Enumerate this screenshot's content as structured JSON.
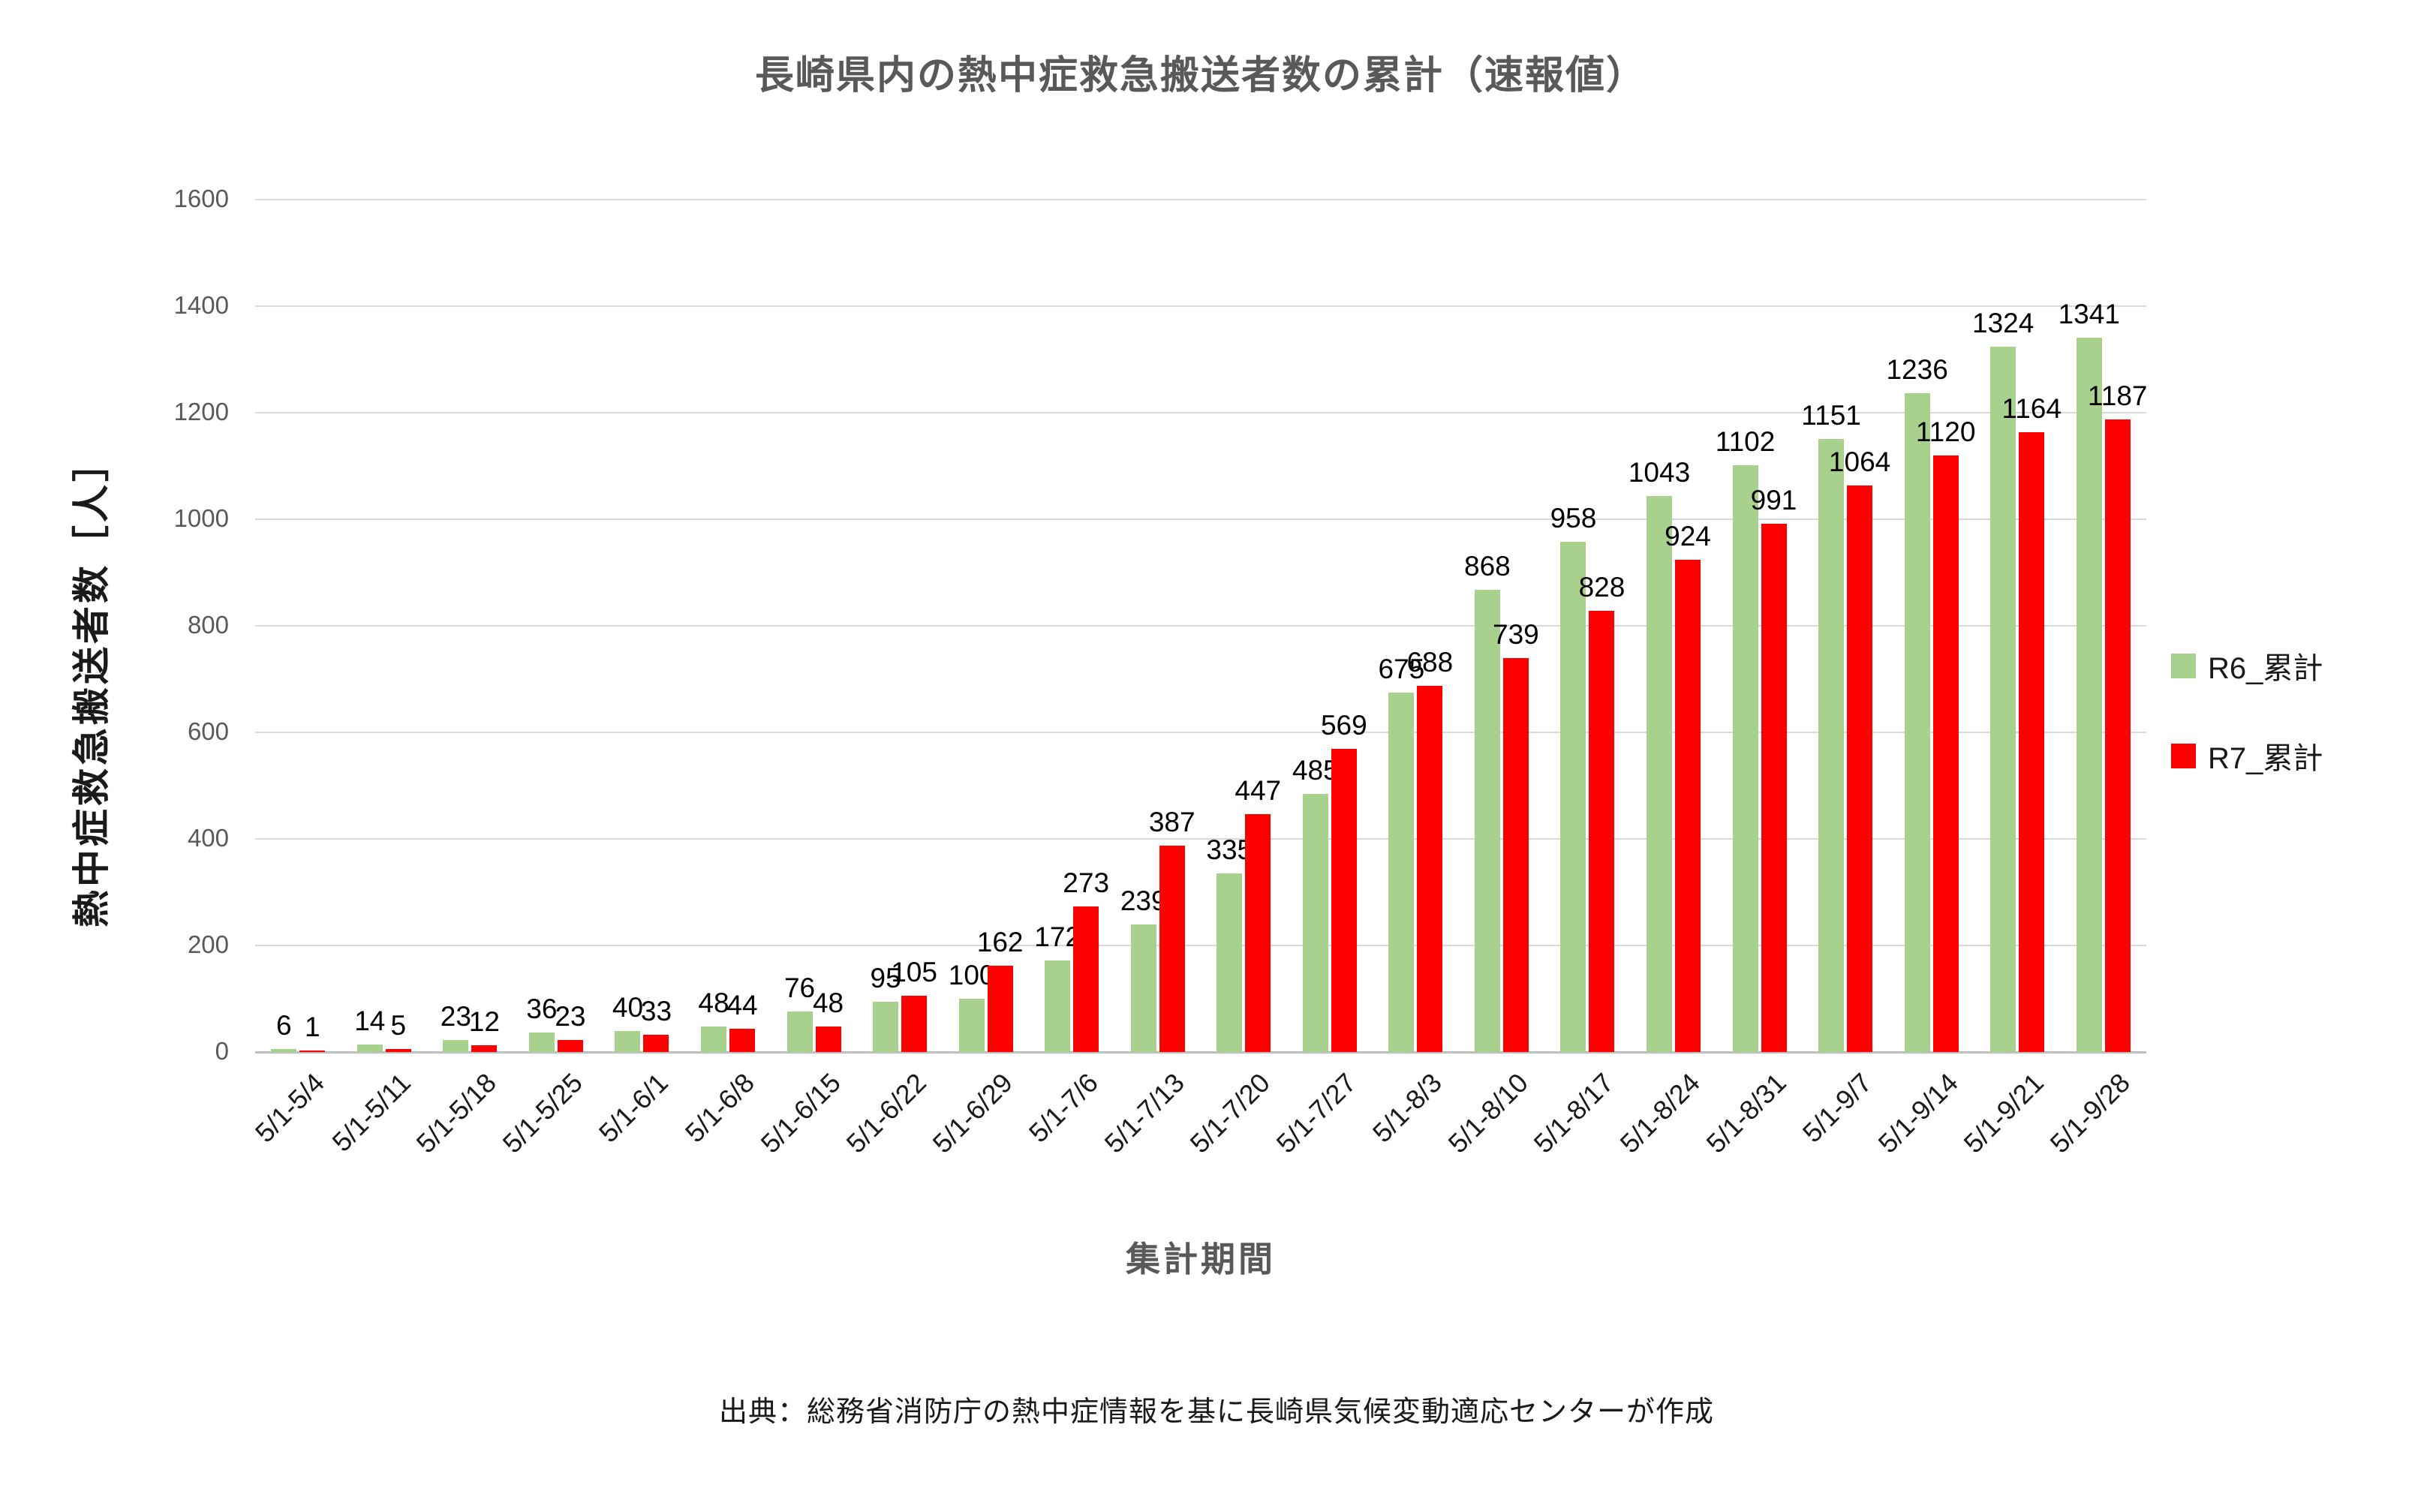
{
  "chart_data": {
    "type": "bar",
    "title": "長崎県内の熱中症救急搬送者数の累計（速報値）",
    "xlabel": "集計期間",
    "ylabel": "熱中症救急搬送者数［人］",
    "ylim": [
      0,
      1600
    ],
    "ytick_step": 200,
    "grid": true,
    "legend_position": "right",
    "bar_value_labels": true,
    "categories": [
      "5/1-5/4",
      "5/1-5/11",
      "5/1-5/18",
      "5/1-5/25",
      "5/1-6/1",
      "5/1-6/8",
      "5/1-6/15",
      "5/1-6/22",
      "5/1-6/29",
      "5/1-7/6",
      "5/1-7/13",
      "5/1-7/20",
      "5/1-7/27",
      "5/1-8/3",
      "5/1-8/10",
      "5/1-8/17",
      "5/1-8/24",
      "5/1-8/31",
      "5/1-9/7",
      "5/1-9/14",
      "5/1-9/21",
      "5/1-9/28"
    ],
    "series": [
      {
        "name": "R6_累計",
        "color": "#A9D18E",
        "values": [
          6,
          14,
          23,
          36,
          40,
          48,
          76,
          95,
          100,
          172,
          239,
          335,
          485,
          675,
          868,
          958,
          1043,
          1102,
          1151,
          1236,
          1324,
          1341
        ]
      },
      {
        "name": "R7_累計",
        "color": "#FF0000",
        "values": [
          1,
          5,
          12,
          23,
          33,
          44,
          48,
          105,
          162,
          273,
          387,
          447,
          569,
          688,
          739,
          828,
          924,
          991,
          1064,
          1120,
          1164,
          1187
        ]
      }
    ]
  },
  "source_note": "出典：総務省消防庁の熱中症情報を基に長崎県気候変動適応センターが作成",
  "colors": {
    "title": "#595959",
    "y_tick_text": "#595959",
    "x_tick_text": "#1a1a1a",
    "grid": "#D9D9D9",
    "baseline": "#BFBFBF",
    "data_label": "#000000",
    "r6_green": "#A9D18E",
    "r7_red": "#FF0000"
  }
}
